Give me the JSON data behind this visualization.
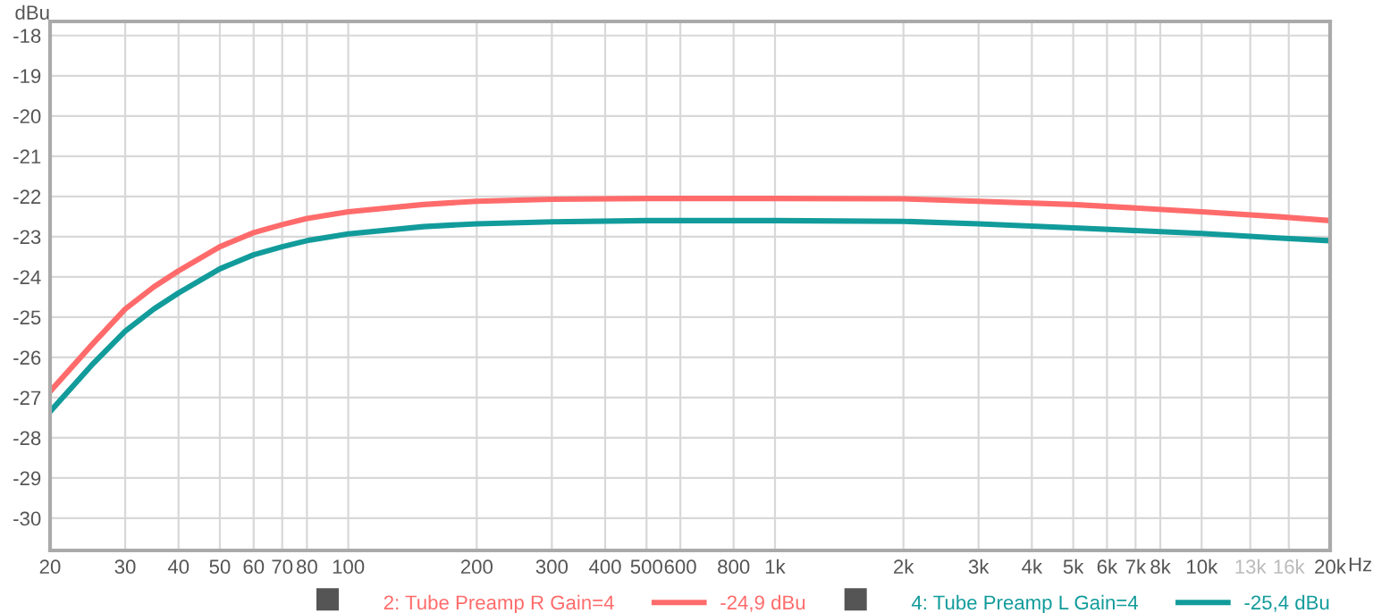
{
  "chart_data": {
    "type": "line",
    "ylabel": "dBu",
    "xlabel": "Hz",
    "log": "x",
    "grid": true,
    "legend": "bottom",
    "marker": "none",
    "line_style": "solid",
    "x": [
      20,
      25,
      30,
      35,
      40,
      50,
      60,
      70,
      80,
      100,
      150,
      200,
      300,
      500,
      1000,
      2000,
      3000,
      5000,
      10000,
      15000,
      20000
    ],
    "series": [
      {
        "name": "2: Tube Preamp R Gain=4",
        "color": "#ff6b6b",
        "values": [
          -26.85,
          -25.7,
          -24.8,
          -24.25,
          -23.85,
          -23.25,
          -22.9,
          -22.7,
          -22.55,
          -22.38,
          -22.2,
          -22.12,
          -22.07,
          -22.05,
          -22.05,
          -22.06,
          -22.12,
          -22.2,
          -22.38,
          -22.5,
          -22.6
        ]
      },
      {
        "name": "4: Tube Preamp L Gain=4",
        "color": "#129b9b",
        "values": [
          -27.35,
          -26.2,
          -25.35,
          -24.8,
          -24.4,
          -23.8,
          -23.45,
          -23.25,
          -23.1,
          -22.93,
          -22.75,
          -22.68,
          -22.63,
          -22.6,
          -22.6,
          -22.62,
          -22.68,
          -22.78,
          -22.92,
          -23.03,
          -23.1
        ]
      }
    ],
    "annotations": [
      "-24,9 dBu",
      "-25,4 dBu"
    ],
    "xlim": [
      20,
      20000
    ],
    "ylim": [
      -30.8,
      -17.65
    ],
    "xticks": [
      20,
      30,
      40,
      50,
      60,
      70,
      80,
      100,
      200,
      300,
      400,
      500,
      600,
      800,
      {
        "value": 1000,
        "label": "1k"
      },
      {
        "value": 2000,
        "label": "2k"
      },
      {
        "value": 3000,
        "label": "3k"
      },
      {
        "value": 4000,
        "label": "4k"
      },
      {
        "value": 5000,
        "label": "5k"
      },
      {
        "value": 6000,
        "label": "6k"
      },
      {
        "value": 7000,
        "label": "7k"
      },
      {
        "value": 8000,
        "label": "8k"
      },
      {
        "value": 10000,
        "label": "10k"
      },
      {
        "value": 13000,
        "label": "13k"
      },
      {
        "value": 16000,
        "label": "16k"
      },
      {
        "value": 20000,
        "label": "20k"
      }
    ],
    "yticks": [
      -18,
      -19,
      -20,
      -21,
      -22,
      -23,
      -24,
      -25,
      -26,
      -27,
      -28,
      -29,
      -30
    ]
  }
}
